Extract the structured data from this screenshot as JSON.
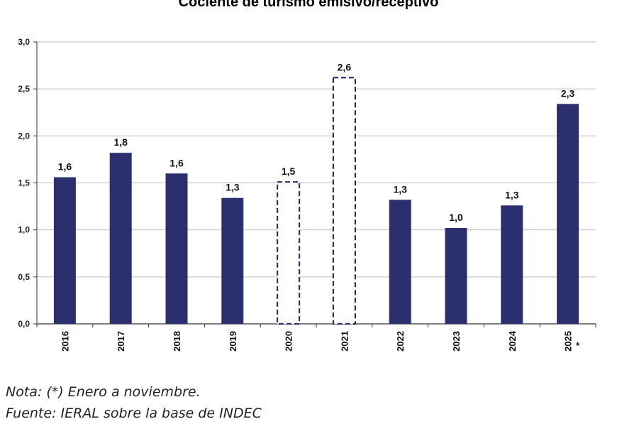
{
  "chart_data": {
    "type": "bar",
    "title": "Cociente de turismo emisivo/receptivo",
    "categories": [
      "2016",
      "2017",
      "2018",
      "2019",
      "2020",
      "2021",
      "2022",
      "2023",
      "2024",
      "2025"
    ],
    "category_markers": [
      "",
      "",
      "",
      "",
      "",
      "",
      "",
      "",
      "",
      "*"
    ],
    "values": [
      1.56,
      1.82,
      1.6,
      1.34,
      1.51,
      2.62,
      1.32,
      1.02,
      1.26,
      2.34
    ],
    "data_labels": [
      "1,6",
      "1,8",
      "1,6",
      "1,3",
      "1,5",
      "2,6",
      "1,3",
      "1,0",
      "1,3",
      "2,3"
    ],
    "bar_style": [
      "solid",
      "solid",
      "solid",
      "solid",
      "dashed",
      "dashed",
      "solid",
      "solid",
      "solid",
      "solid"
    ],
    "ylim": [
      0,
      3
    ],
    "yticks": [
      0,
      0.5,
      1,
      1.5,
      2,
      2.5,
      3
    ],
    "ytick_labels": [
      "0,0",
      "0,5",
      "1,0",
      "1,5",
      "2,0",
      "2,5",
      "3,0"
    ],
    "xlabel": "",
    "ylabel": "",
    "grid": true,
    "colors": {
      "bar": "#2b2f6e",
      "grid": "#bdbdbd",
      "axis": "#333333"
    }
  },
  "notes": {
    "nota": "Nota: (*) Enero a noviembre.",
    "fuente": "Fuente: IERAL sobre la base de INDEC"
  }
}
